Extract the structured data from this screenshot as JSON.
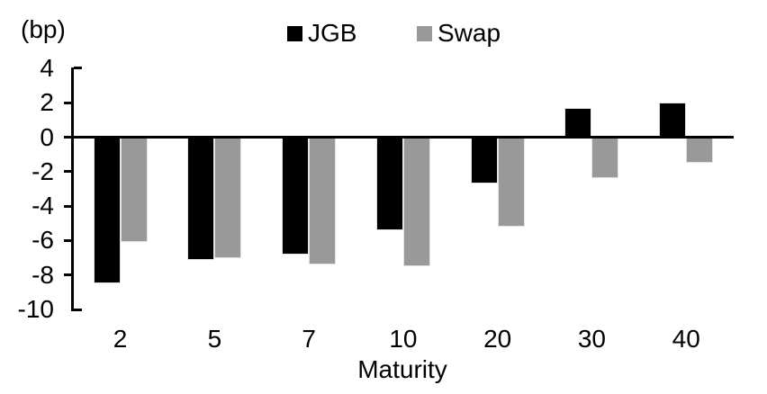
{
  "chart_data": {
    "type": "bar",
    "title": "",
    "unit_label": "(bp)",
    "xlabel": "Maturity",
    "ylabel": "",
    "categories": [
      "2",
      "5",
      "7",
      "10",
      "20",
      "30",
      "40"
    ],
    "series": [
      {
        "name": "JGB",
        "color": "#000000",
        "values": [
          -8.5,
          -7.1,
          -6.8,
          -5.4,
          -2.7,
          1.7,
          2.0
        ]
      },
      {
        "name": "Swap",
        "color": "#999999",
        "values": [
          -6.1,
          -7.0,
          -7.4,
          -7.5,
          -5.2,
          -2.4,
          -1.5
        ]
      }
    ],
    "yticks": [
      4,
      2,
      0,
      -2,
      -4,
      -6,
      -8,
      -10
    ],
    "ylim": [
      -10,
      4
    ],
    "legend_position": "top-center",
    "grid": false,
    "axis_color": "#000000",
    "background_color": "#ffffff"
  }
}
